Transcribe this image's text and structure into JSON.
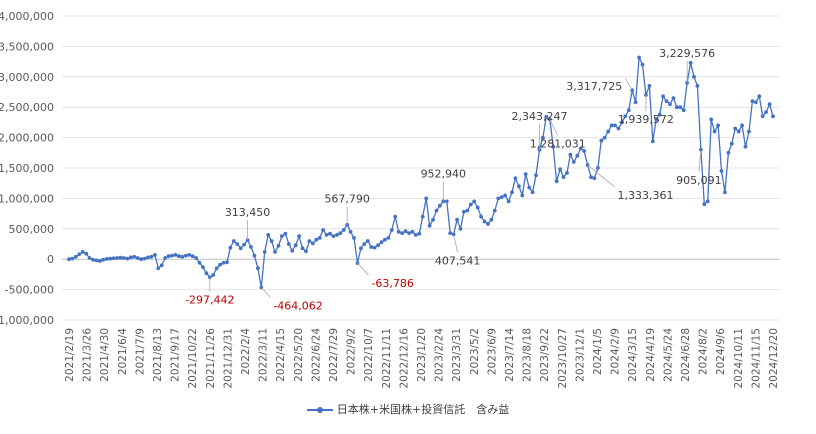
{
  "chart_data": {
    "type": "line",
    "title": "",
    "xlabel": "",
    "ylabel": "",
    "ylim": [
      -1000000,
      4000000
    ],
    "y_ticks": [
      "4,000,000",
      "3,500,000",
      "3,000,000",
      "2,500,000",
      "2,000,000",
      "1,500,000",
      "1,000,000",
      "500,000",
      "0",
      "-500,000",
      "-1,000,000"
    ],
    "x_tick_labels": [
      "2021/2/19",
      "2021/3/26",
      "2021/4/30",
      "2021/6/4",
      "2021/7/9",
      "2021/8/13",
      "2021/9/17",
      "2021/10/22",
      "2021/11/26",
      "2021/12/31",
      "2022/2/4",
      "2022/3/11",
      "2022/4/15",
      "2022/5/20",
      "2022/6/24",
      "2022/7/29",
      "2022/9/2",
      "2022/10/7",
      "2022/11/11",
      "2022/12/16",
      "2023/1/20",
      "2023/2/24",
      "2023/3/31",
      "2023/5/2",
      "2023/6/9",
      "2023/7/14",
      "2023/8/18",
      "2023/9/22",
      "2023/10/27",
      "2023/12/1",
      "2024/1/5",
      "2024/2/9",
      "2024/3/15",
      "2024/4/19",
      "2024/5/24",
      "2024/6/28",
      "2024/8/2",
      "2024/9/6",
      "2024/10/11",
      "2024/11/15",
      "2024/12/20"
    ],
    "grid": "horizontal",
    "legend_position": "bottom",
    "series": [
      {
        "name": "日本株+米国株+投資信託　含み益",
        "color": "#4472C4",
        "values": [
          0,
          10000,
          40000,
          80000,
          120000,
          90000,
          20000,
          -10000,
          -20000,
          -30000,
          -10000,
          5000,
          10000,
          15000,
          20000,
          25000,
          20000,
          10000,
          30000,
          40000,
          20000,
          0,
          10000,
          30000,
          40000,
          70000,
          -150000,
          -100000,
          20000,
          50000,
          60000,
          70000,
          50000,
          40000,
          60000,
          70000,
          50000,
          20000,
          -60000,
          -130000,
          -230000,
          -297442,
          -260000,
          -150000,
          -90000,
          -60000,
          -50000,
          190000,
          300000,
          250000,
          180000,
          240000,
          313450,
          200000,
          60000,
          -150000,
          -464062,
          120000,
          400000,
          300000,
          120000,
          220000,
          380000,
          420000,
          250000,
          140000,
          230000,
          380000,
          180000,
          130000,
          300000,
          260000,
          320000,
          350000,
          480000,
          400000,
          420000,
          380000,
          400000,
          430000,
          480000,
          567790,
          450000,
          350000,
          -63786,
          180000,
          250000,
          300000,
          200000,
          190000,
          230000,
          280000,
          320000,
          350000,
          480000,
          700000,
          450000,
          430000,
          460000,
          430000,
          450000,
          400000,
          420000,
          700000,
          1000000,
          550000,
          650000,
          800000,
          880000,
          952940,
          950000,
          430000,
          407541,
          650000,
          500000,
          780000,
          800000,
          900000,
          950000,
          850000,
          700000,
          620000,
          580000,
          650000,
          800000,
          1000000,
          1020000,
          1050000,
          950000,
          1100000,
          1330000,
          1200000,
          1050000,
          1400000,
          1180000,
          1100000,
          1380000,
          1800000,
          2000000,
          2343247,
          2300000,
          1850000,
          1281031,
          1480000,
          1350000,
          1420000,
          1720000,
          1600000,
          1700000,
          1820000,
          1780000,
          1550000,
          1350000,
          1333361,
          1500000,
          1950000,
          2000000,
          2100000,
          2200000,
          2200000,
          2150000,
          2250000,
          2350000,
          2450000,
          2780000,
          2580000,
          3317725,
          3200000,
          2700000,
          2850000,
          1939572,
          2300000,
          2380000,
          2680000,
          2600000,
          2550000,
          2650000,
          2500000,
          2500000,
          2450000,
          2900000,
          3229576,
          3000000,
          2850000,
          1800000,
          905091,
          950000,
          2300000,
          2100000,
          2200000,
          1450000,
          1100000,
          1750000,
          1900000,
          2150000,
          2100000,
          2200000,
          1850000,
          2100000,
          2600000,
          2580000,
          2680000,
          2350000,
          2420000,
          2550000,
          2350000
        ]
      }
    ],
    "annotations": [
      {
        "text": "313,450",
        "color": "#404040"
      },
      {
        "text": "-297,442",
        "color": "#C00000"
      },
      {
        "text": "-464,062",
        "color": "#C00000"
      },
      {
        "text": "567,790",
        "color": "#404040"
      },
      {
        "text": "-63,786",
        "color": "#C00000"
      },
      {
        "text": "952,940",
        "color": "#404040"
      },
      {
        "text": "407,541",
        "color": "#404040"
      },
      {
        "text": "2,343,247",
        "color": "#404040"
      },
      {
        "text": "1,281,031",
        "color": "#404040"
      },
      {
        "text": "1,333,361",
        "color": "#404040"
      },
      {
        "text": "3,317,725",
        "color": "#404040"
      },
      {
        "text": "1,939,572",
        "color": "#404040"
      },
      {
        "text": "3,229,576",
        "color": "#404040"
      },
      {
        "text": "905,091",
        "color": "#404040"
      }
    ]
  }
}
